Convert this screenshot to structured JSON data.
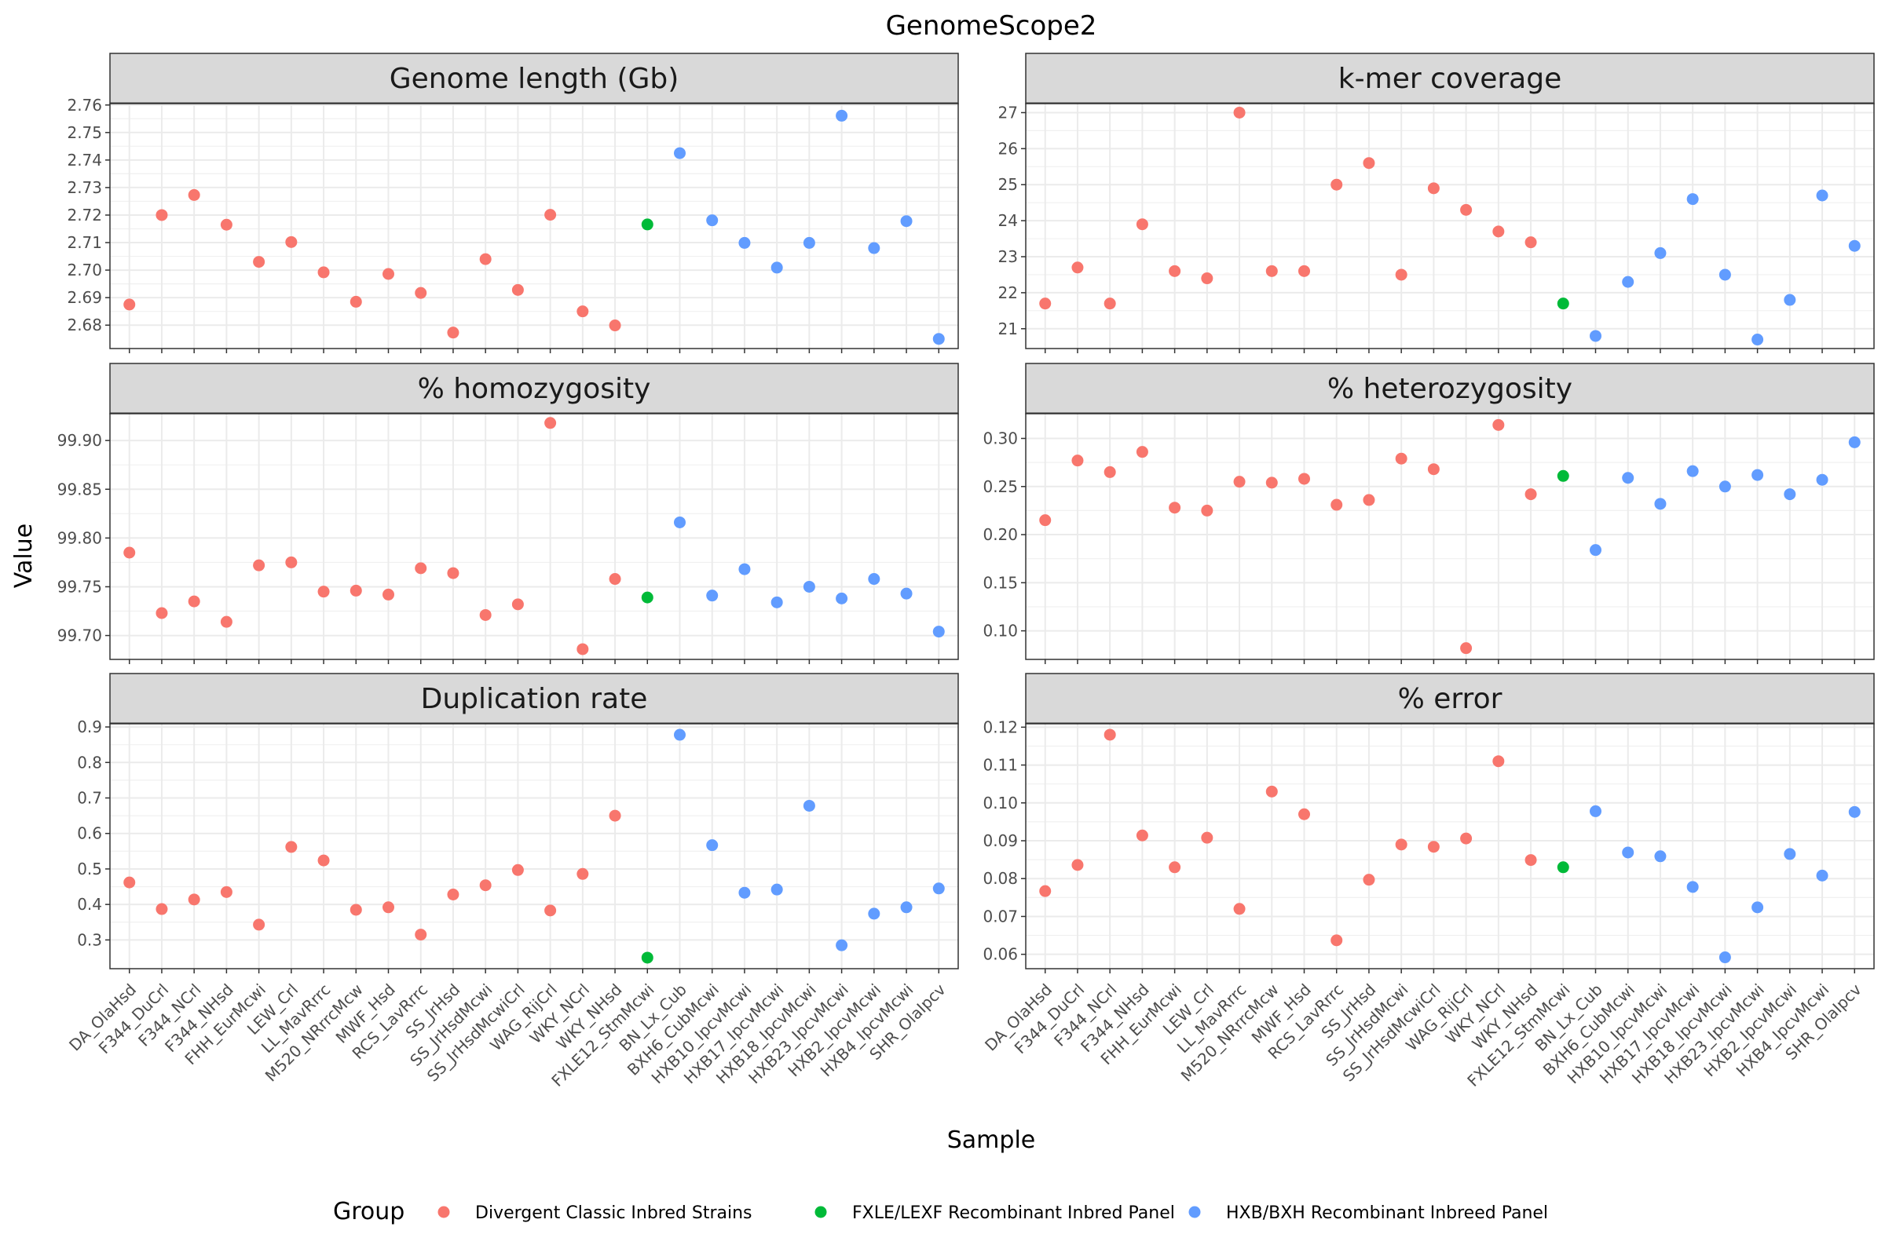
{
  "chart_data": {
    "type": "scatter",
    "title": "GenomeScope2",
    "xlabel": "Sample",
    "ylabel": "Value",
    "legend": {
      "title": "Group",
      "position": "bottom",
      "entries": [
        {
          "name": "Divergent Classic Inbred Strains",
          "color": "#F8766D"
        },
        {
          "name": "FXLE/LEXF Recombinant Inbred Panel",
          "color": "#00BA38"
        },
        {
          "name": "HXB/BXH Recombinant Inbreed Panel",
          "color": "#619CFF"
        }
      ]
    },
    "samples": [
      "DA_OlaHsd",
      "F344_DuCrl",
      "F344_NCrl",
      "F344_NHsd",
      "FHH_EurMcwi",
      "LEW_Crl",
      "LL_MavRrrc",
      "M520_NRrrcMcw",
      "MWF_Hsd",
      "RCS_LavRrrc",
      "SS_JrHsd",
      "SS_JrHsdMcwi",
      "SS_JrHsdMcwiCrl",
      "WAG_RijCrl",
      "WKY_NCrl",
      "WKY_NHsd",
      "FXLE12_StmMcwi",
      "BN_Lx_Cub",
      "BXH6_CubMcwi",
      "HXB10_IpcvMcwi",
      "HXB17_IpcvMcwi",
      "HXB18_IpcvMcwi",
      "HXB23_IpcvMcwi",
      "HXB2_IpcvMcwi",
      "HXB4_IpcvMcwi",
      "SHR_OlaIpcv"
    ],
    "groups": [
      0,
      0,
      0,
      0,
      0,
      0,
      0,
      0,
      0,
      0,
      0,
      0,
      0,
      0,
      0,
      0,
      1,
      2,
      2,
      2,
      2,
      2,
      2,
      2,
      2,
      2
    ],
    "grid": true,
    "panels": [
      {
        "name": "Genome length (Gb)",
        "ylim": [
          2.6715,
          2.7605
        ],
        "yticks": [
          "2.68",
          "2.69",
          "2.70",
          "2.71",
          "2.72",
          "2.73",
          "2.74",
          "2.75",
          "2.76"
        ],
        "values": [
          2.6875,
          2.72,
          2.7273,
          2.7165,
          2.703,
          2.7102,
          2.6992,
          2.6885,
          2.6986,
          2.6917,
          2.6773,
          2.704,
          2.6928,
          2.7201,
          2.685,
          2.6799,
          2.7166,
          2.7425,
          2.7181,
          2.7099,
          2.7009,
          2.7099,
          2.7561,
          2.708,
          2.7178,
          2.675
        ]
      },
      {
        "name": "k-mer coverage",
        "ylim": [
          20.45,
          27.25
        ],
        "yticks": [
          "21",
          "22",
          "23",
          "24",
          "25",
          "26",
          "27"
        ],
        "values": [
          21.7,
          22.7,
          21.7,
          23.9,
          22.6,
          22.4,
          27.0,
          22.6,
          22.6,
          25.0,
          25.6,
          22.5,
          24.9,
          24.3,
          23.7,
          23.4,
          21.7,
          20.8,
          22.3,
          23.1,
          24.6,
          22.5,
          20.7,
          21.8,
          24.7,
          23.3
        ]
      },
      {
        "name": "% homozygosity",
        "ylim": [
          99.6755,
          99.9275
        ],
        "yticks": [
          "99.70",
          "99.75",
          "99.80",
          "99.85",
          "99.90"
        ],
        "values": [
          99.785,
          99.723,
          99.735,
          99.714,
          99.772,
          99.775,
          99.745,
          99.746,
          99.742,
          99.769,
          99.764,
          99.721,
          99.732,
          99.918,
          99.686,
          99.758,
          99.739,
          99.816,
          99.741,
          99.768,
          99.734,
          99.75,
          99.738,
          99.758,
          99.743,
          99.704
        ]
      },
      {
        "name": "% heterozygosity",
        "ylim": [
          0.0703,
          0.3257
        ],
        "yticks": [
          "0.10",
          "0.15",
          "0.20",
          "0.25",
          "0.30"
        ],
        "values": [
          0.215,
          0.277,
          0.265,
          0.286,
          0.228,
          0.225,
          0.255,
          0.254,
          0.258,
          0.231,
          0.236,
          0.279,
          0.268,
          0.082,
          0.314,
          0.242,
          0.261,
          0.184,
          0.259,
          0.232,
          0.266,
          0.25,
          0.262,
          0.242,
          0.257,
          0.296
        ]
      },
      {
        "name": "Duplication rate",
        "ylim": [
          0.219,
          0.909
        ],
        "yticks": [
          "0.3",
          "0.4",
          "0.5",
          "0.6",
          "0.7",
          "0.8",
          "0.9"
        ],
        "values": [
          0.462,
          0.387,
          0.414,
          0.435,
          0.343,
          0.562,
          0.524,
          0.385,
          0.392,
          0.315,
          0.428,
          0.454,
          0.497,
          0.383,
          0.486,
          0.65,
          0.25,
          0.878,
          0.567,
          0.433,
          0.442,
          0.678,
          0.285,
          0.374,
          0.392,
          0.445
        ]
      },
      {
        "name": "% error",
        "ylim": [
          0.0562,
          0.1209
        ],
        "yticks": [
          "0.06",
          "0.07",
          "0.08",
          "0.09",
          "0.10",
          "0.11",
          "0.12"
        ],
        "values": [
          0.0767,
          0.0836,
          0.118,
          0.0914,
          0.083,
          0.0908,
          0.072,
          0.103,
          0.097,
          0.0637,
          0.0797,
          0.089,
          0.0884,
          0.0906,
          0.111,
          0.0849,
          0.083,
          0.0978,
          0.0869,
          0.0859,
          0.0778,
          0.0592,
          0.0724,
          0.0865,
          0.0808,
          0.0976
        ]
      }
    ]
  }
}
